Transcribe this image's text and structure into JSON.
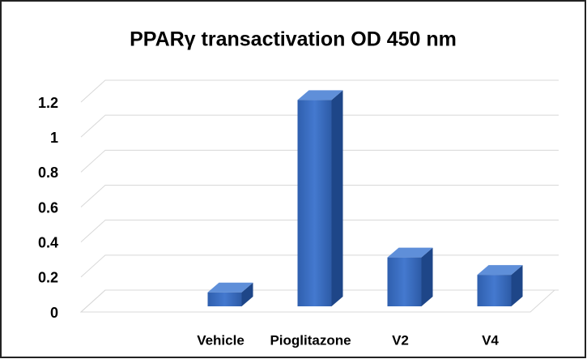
{
  "chart_data": {
    "type": "bar3d",
    "title": "PPARγ transactivation OD 450 nm",
    "categories": [
      null,
      "Vehicle",
      "Pioglitazone",
      "V2",
      "V4"
    ],
    "values": [
      null,
      0.08,
      1.18,
      0.28,
      0.18
    ],
    "color": "#3a6cc0",
    "ylim": [
      0,
      1.2
    ],
    "yticks": [
      0,
      0.2,
      0.4,
      0.6,
      0.8,
      1,
      1.2
    ],
    "grid": true
  }
}
